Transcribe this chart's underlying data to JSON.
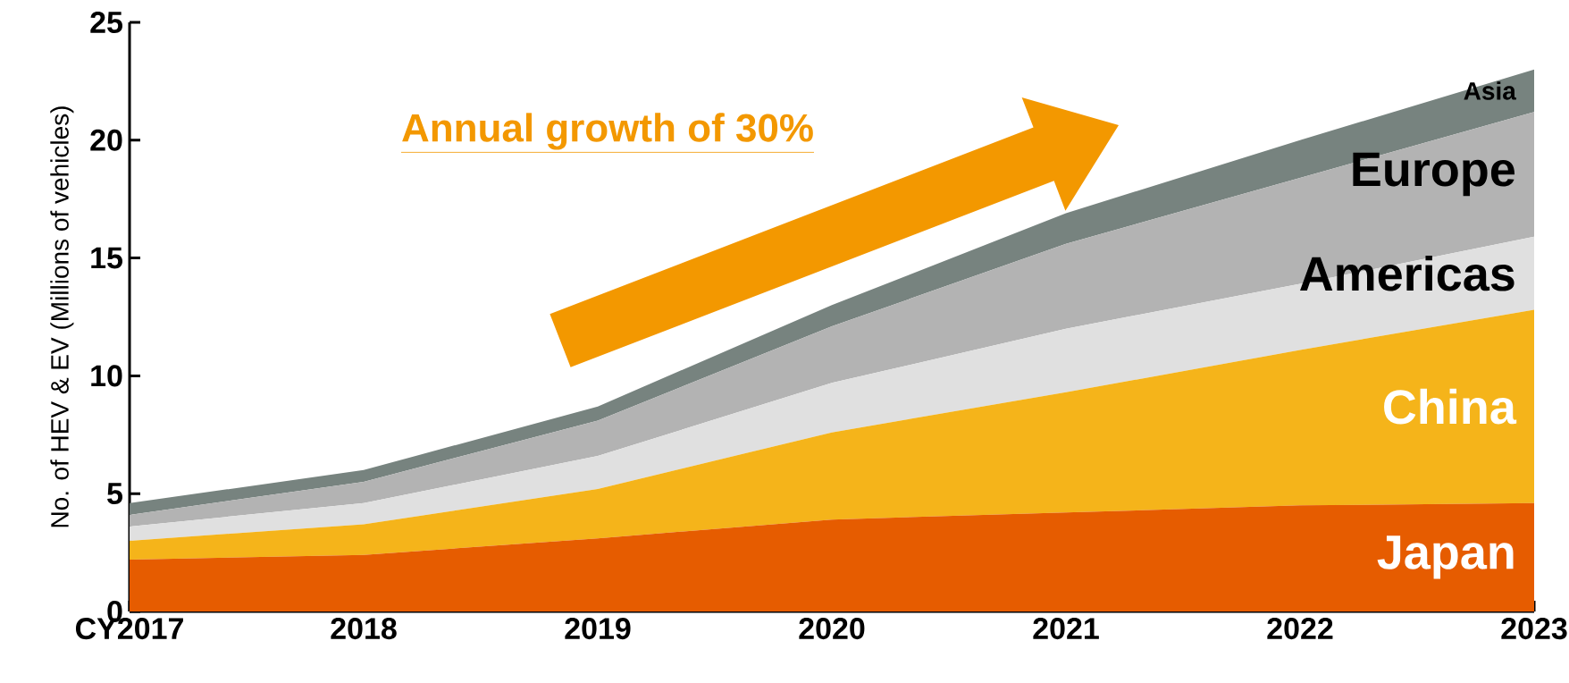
{
  "chart_data": {
    "type": "area",
    "stacked": true,
    "ylabel": "No. of HEV & EV (Millions of vehicles)",
    "categories": [
      "CY2017",
      "2018",
      "2019",
      "2020",
      "2021",
      "2022",
      "2023"
    ],
    "ylim": [
      0,
      25
    ],
    "yticks": [
      0,
      5,
      10,
      15,
      20,
      25
    ],
    "grid": false,
    "annotations": [
      "Annual growth of 30%"
    ],
    "series": [
      {
        "name": "Japan",
        "color": "#e65c00",
        "values": [
          2.2,
          2.4,
          3.1,
          3.9,
          4.2,
          4.5,
          4.6
        ]
      },
      {
        "name": "China",
        "color": "#f5b41a",
        "values": [
          0.8,
          1.3,
          2.1,
          3.7,
          5.1,
          6.6,
          8.2
        ]
      },
      {
        "name": "Americas",
        "color": "#e0e0e0",
        "values": [
          0.6,
          0.9,
          1.4,
          2.1,
          2.7,
          2.8,
          3.1
        ]
      },
      {
        "name": "Europe",
        "color": "#b3b3b3",
        "values": [
          0.5,
          0.9,
          1.5,
          2.4,
          3.6,
          4.5,
          5.3
        ]
      },
      {
        "name": "Asia",
        "color": "#77837f",
        "values": [
          0.5,
          0.5,
          0.6,
          0.9,
          1.3,
          1.6,
          1.8
        ]
      }
    ]
  }
}
